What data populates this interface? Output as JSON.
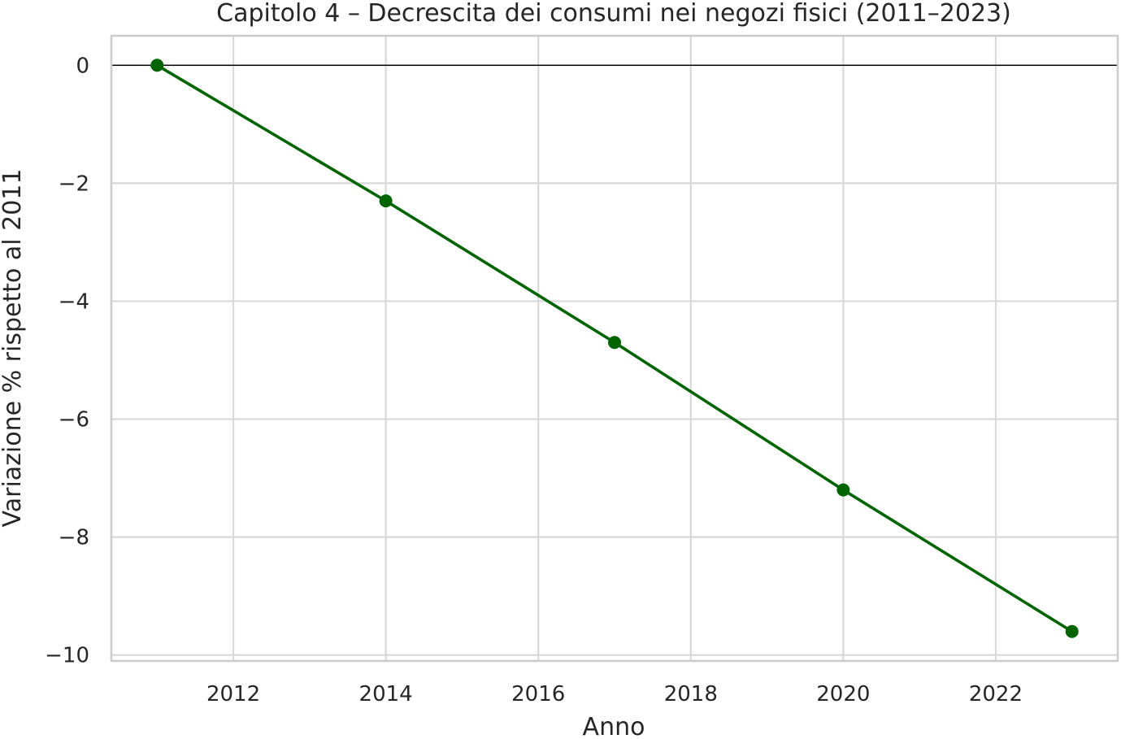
{
  "chart_data": {
    "type": "line",
    "title": "Capitolo 4 – Decrescita dei consumi nei negozi fisici (2011–2023)",
    "xlabel": "Anno",
    "ylabel": "Variazione % rispetto al 2011",
    "x": [
      2011,
      2014,
      2017,
      2020,
      2023
    ],
    "series": [
      {
        "values": [
          0,
          -2.3,
          -4.7,
          -7.2,
          -9.6
        ],
        "color": "#006400",
        "marker": "circle"
      }
    ],
    "xlim": [
      2010.4,
      2023.6
    ],
    "ylim": [
      -10.1,
      0.5
    ],
    "xticks": [
      2012,
      2014,
      2016,
      2018,
      2020,
      2022
    ],
    "xtick_labels": [
      "2012",
      "2014",
      "2016",
      "2018",
      "2020",
      "2022"
    ],
    "yticks": [
      0,
      -2,
      -4,
      -6,
      -8,
      -10
    ],
    "ytick_labels": [
      "0",
      "−2",
      "−4",
      "−6",
      "−8",
      "−10"
    ],
    "reference_line": {
      "y": 0,
      "color": "#000000"
    },
    "grid": true,
    "legend": false,
    "colors": {
      "grid": "#d9d9d9",
      "frame": "#cccccc",
      "text": "#262626"
    }
  }
}
